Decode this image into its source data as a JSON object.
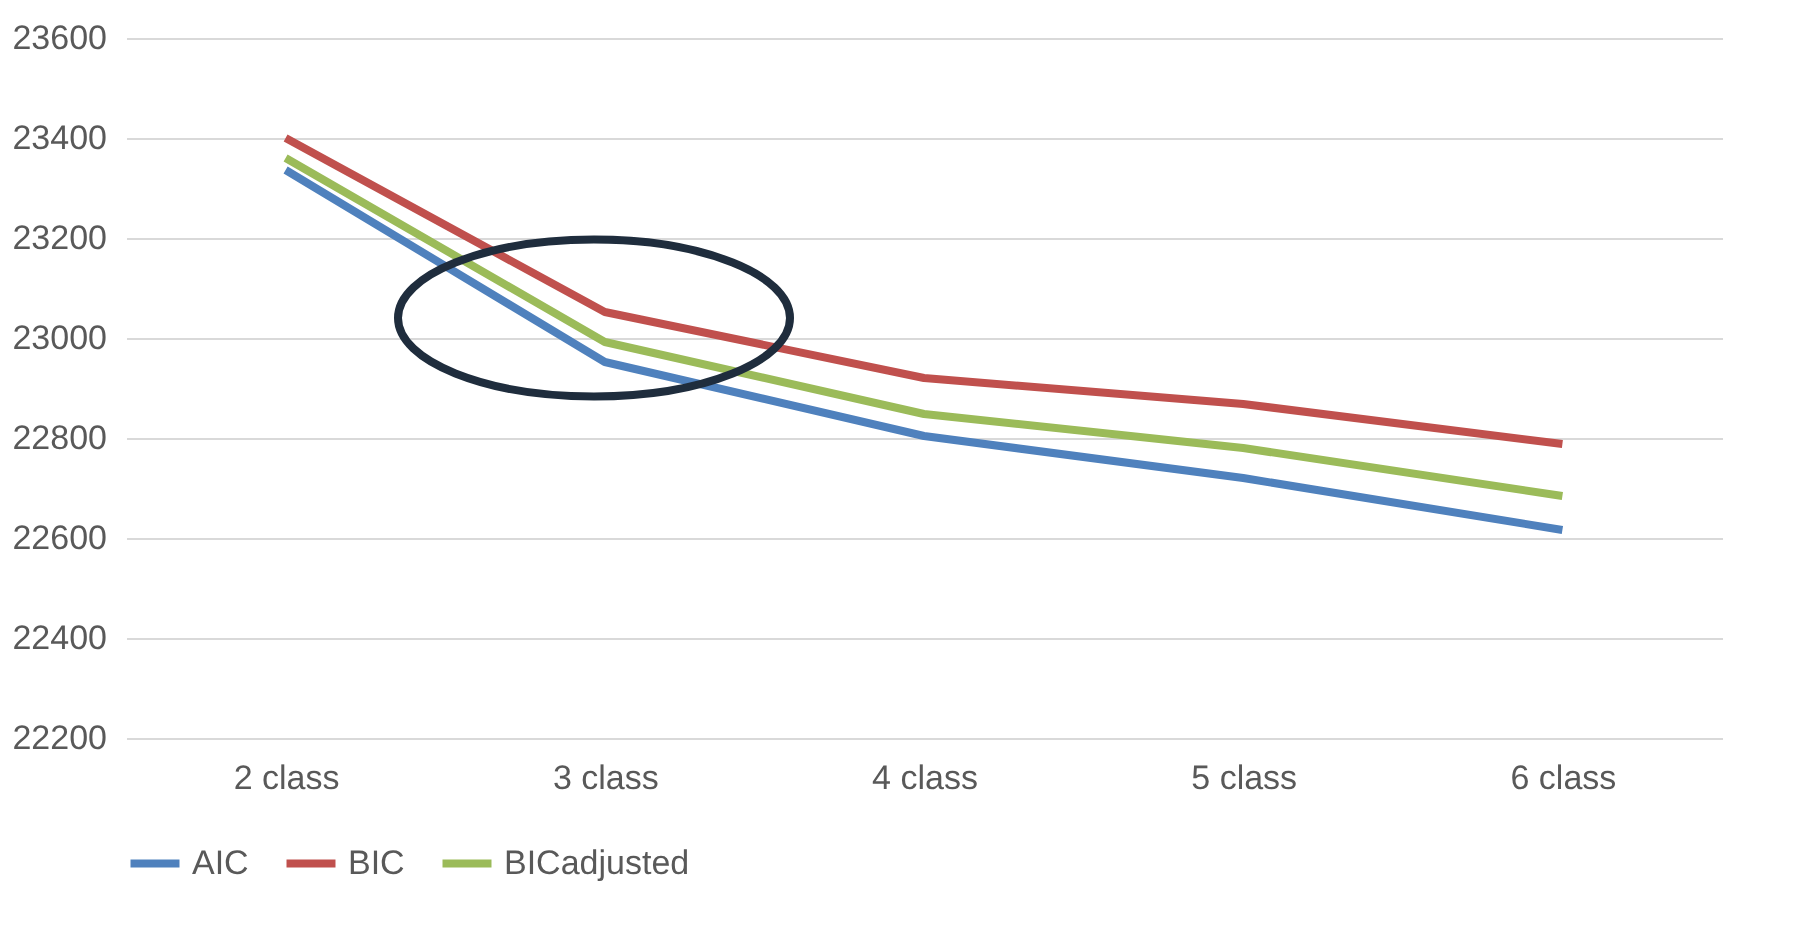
{
  "chart_data": {
    "type": "line",
    "categories": [
      "2 class",
      "3 class",
      "4 class",
      "5 class",
      "6 class"
    ],
    "series": [
      {
        "name": "AIC",
        "color": "#4f81bd",
        "values": [
          23336,
          22952,
          22804,
          22720,
          22616
        ]
      },
      {
        "name": "BIC",
        "color": "#c0504d",
        "values": [
          23400,
          23052,
          22920,
          22868,
          22788
        ]
      },
      {
        "name": "BICadjusted",
        "color": "#9bbb59",
        "values": [
          23360,
          22992,
          22848,
          22780,
          22684
        ]
      }
    ],
    "ylim": [
      22200,
      23600
    ],
    "yticks": [
      22200,
      22400,
      22600,
      22800,
      23000,
      23200,
      23400,
      23600
    ],
    "grid": "y",
    "legend": "bottom",
    "marker": "none",
    "line_style": "solid"
  }
}
